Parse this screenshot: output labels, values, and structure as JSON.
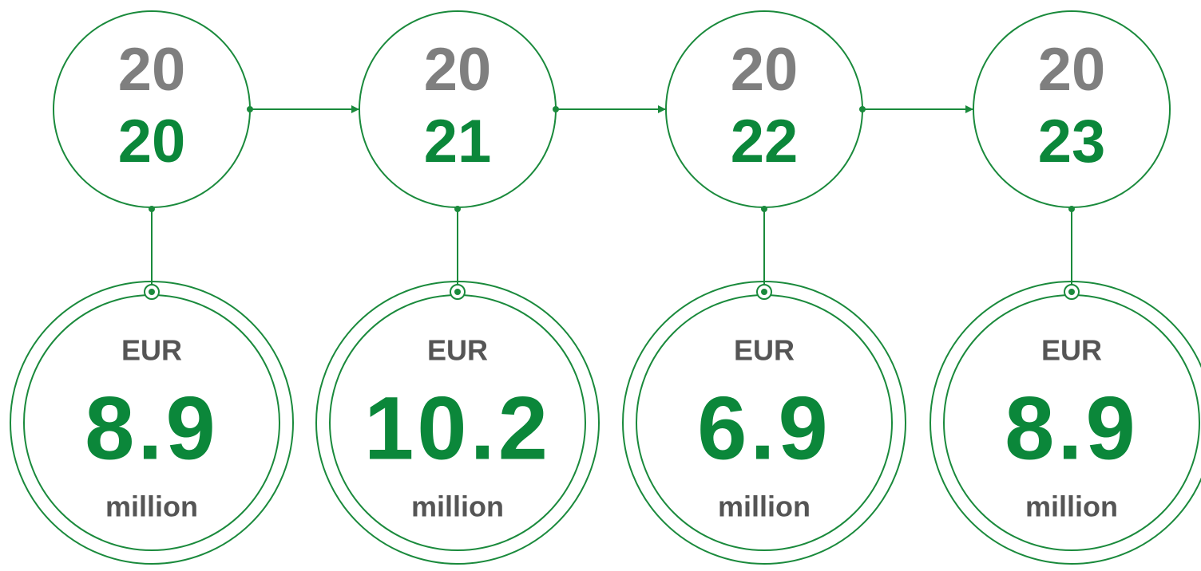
{
  "items": [
    {
      "year_top": "20",
      "year_bottom": "20",
      "currency": "EUR",
      "amount": 8.9,
      "unit": "million"
    },
    {
      "year_top": "20",
      "year_bottom": "21",
      "currency": "EUR",
      "amount": 10.2,
      "unit": "million"
    },
    {
      "year_top": "20",
      "year_bottom": "22",
      "currency": "EUR",
      "amount": 6.9,
      "unit": "million"
    },
    {
      "year_top": "20",
      "year_bottom": "23",
      "currency": "EUR",
      "amount": 8.9,
      "unit": "million"
    }
  ]
}
